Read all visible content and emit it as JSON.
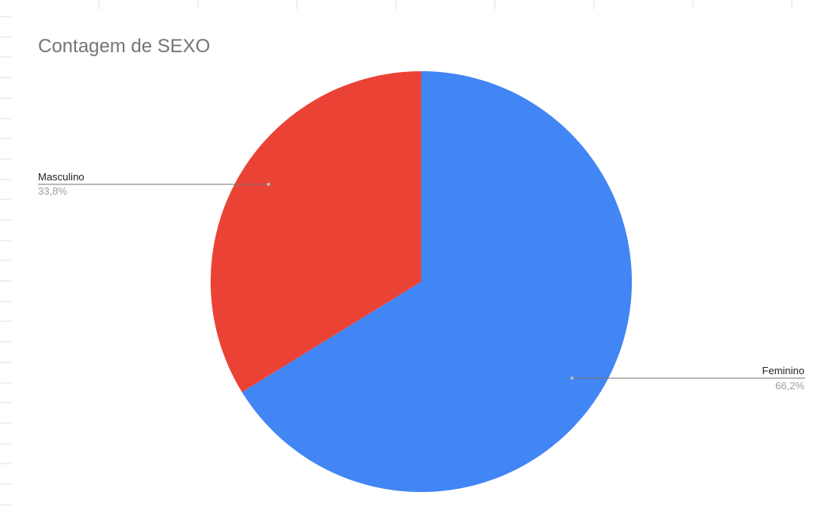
{
  "chart_data": {
    "type": "pie",
    "title": "Contagem de SEXO",
    "slices": [
      {
        "label": "Feminino",
        "value": 66.2,
        "percent_label": "66,2%",
        "color": "#4285f4"
      },
      {
        "label": "Masculino",
        "value": 33.8,
        "percent_label": "33,8%",
        "color": "#ea4335"
      }
    ],
    "start_angle_deg": 0,
    "direction": "clockwise",
    "legend": "none",
    "labels": "outside-with-leader-lines"
  },
  "colors": {
    "background": "#ffffff",
    "grid": "#e0e0e0",
    "leader_line": "#757575",
    "title": "#757575"
  }
}
